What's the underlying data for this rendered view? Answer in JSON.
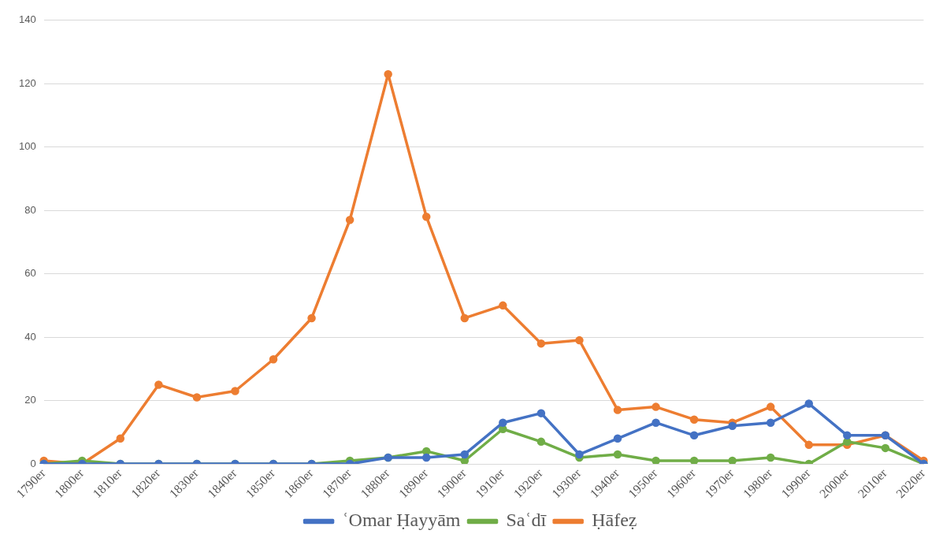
{
  "chart_data": {
    "type": "line",
    "categories": [
      "1790er",
      "1800er",
      "1810er",
      "1820er",
      "1830er",
      "1840er",
      "1850er",
      "1860er",
      "1870er",
      "1880er",
      "1890er",
      "1900er",
      "1910er",
      "1920er",
      "1930er",
      "1940er",
      "1950er",
      "1960er",
      "1970er",
      "1980er",
      "1990er",
      "2000er",
      "2010er",
      "2020er"
    ],
    "series": [
      {
        "name": "ʿOmar Ḥayyām",
        "color": "#4472c4",
        "values": [
          0,
          0,
          0,
          0,
          0,
          0,
          0,
          0,
          0,
          2,
          2,
          3,
          13,
          16,
          3,
          8,
          13,
          9,
          12,
          13,
          19,
          9,
          9,
          0
        ]
      },
      {
        "name": "Saʿdī",
        "color": "#70ad47",
        "values": [
          0,
          1,
          0,
          0,
          0,
          0,
          0,
          0,
          1,
          2,
          4,
          1,
          11,
          7,
          2,
          3,
          1,
          1,
          1,
          2,
          0,
          7,
          5,
          0
        ]
      },
      {
        "name": "Ḥāfeẓ",
        "color": "#ed7d31",
        "values": [
          1,
          0,
          8,
          25,
          21,
          23,
          33,
          46,
          77,
          123,
          78,
          46,
          50,
          38,
          39,
          17,
          18,
          14,
          13,
          18,
          6,
          6,
          9,
          1
        ]
      }
    ],
    "ylim": [
      0,
      140
    ],
    "yticks": [
      0,
      20,
      40,
      60,
      80,
      100,
      120,
      140
    ],
    "grid": "y",
    "legend": "bottom",
    "marker": "circle",
    "line_style": "solid"
  }
}
